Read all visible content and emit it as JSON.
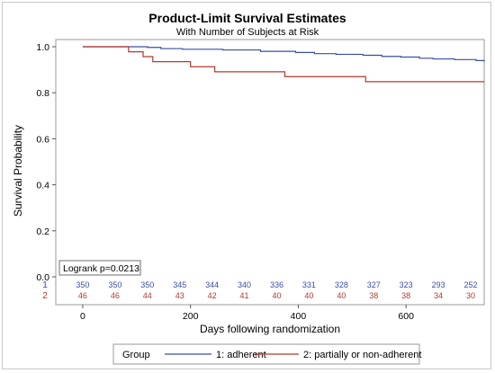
{
  "chart_data": {
    "type": "line",
    "title": "Product-Limit Survival Estimates",
    "subtitle": "With Number of Subjects at Risk",
    "xlabel": "Days following randomization",
    "ylabel": "Survival Probability",
    "xlim": [
      -50,
      745
    ],
    "ylim": [
      0.0,
      1.0
    ],
    "x_ticks": [
      0,
      200,
      400,
      600
    ],
    "y_ticks": [
      "0.0",
      "0.2",
      "0.4",
      "0.6",
      "0.8",
      "1.0"
    ],
    "grid": false,
    "annotation": "Logrank p=0.0213",
    "colors": {
      "series1": "#3a4ea8",
      "series2": "#b23a2e"
    },
    "series": [
      {
        "name": "1: adherent",
        "step_points": [
          [
            0,
            1.0
          ],
          [
            120,
            0.997
          ],
          [
            145,
            0.992
          ],
          [
            185,
            0.989
          ],
          [
            260,
            0.986
          ],
          [
            330,
            0.98
          ],
          [
            395,
            0.975
          ],
          [
            430,
            0.97
          ],
          [
            470,
            0.967
          ],
          [
            520,
            0.963
          ],
          [
            555,
            0.958
          ],
          [
            590,
            0.955
          ],
          [
            625,
            0.95
          ],
          [
            650,
            0.947
          ],
          [
            690,
            0.944
          ],
          [
            730,
            0.94
          ],
          [
            745,
            0.935
          ]
        ]
      },
      {
        "name": "2: partially or non-adherent",
        "step_points": [
          [
            0,
            1.0
          ],
          [
            85,
            0.978
          ],
          [
            112,
            0.957
          ],
          [
            130,
            0.935
          ],
          [
            200,
            0.913
          ],
          [
            245,
            0.891
          ],
          [
            375,
            0.87
          ],
          [
            525,
            0.848
          ],
          [
            745,
            0.848
          ]
        ]
      }
    ],
    "at_risk": {
      "x": [
        0,
        60,
        120,
        180,
        240,
        300,
        360,
        420,
        480,
        540,
        600,
        660,
        720
      ],
      "rows": [
        {
          "label": "1",
          "values": [
            "350",
            "350",
            "350",
            "345",
            "344",
            "340",
            "336",
            "331",
            "328",
            "327",
            "323",
            "293",
            "252"
          ]
        },
        {
          "label": "2",
          "values": [
            "46",
            "46",
            "44",
            "43",
            "42",
            "41",
            "40",
            "40",
            "40",
            "38",
            "38",
            "34",
            "30"
          ]
        }
      ]
    },
    "legend": {
      "position": "bottom",
      "title": "Group",
      "entries": [
        "1: adherent",
        "2: partially or non-adherent"
      ]
    }
  }
}
